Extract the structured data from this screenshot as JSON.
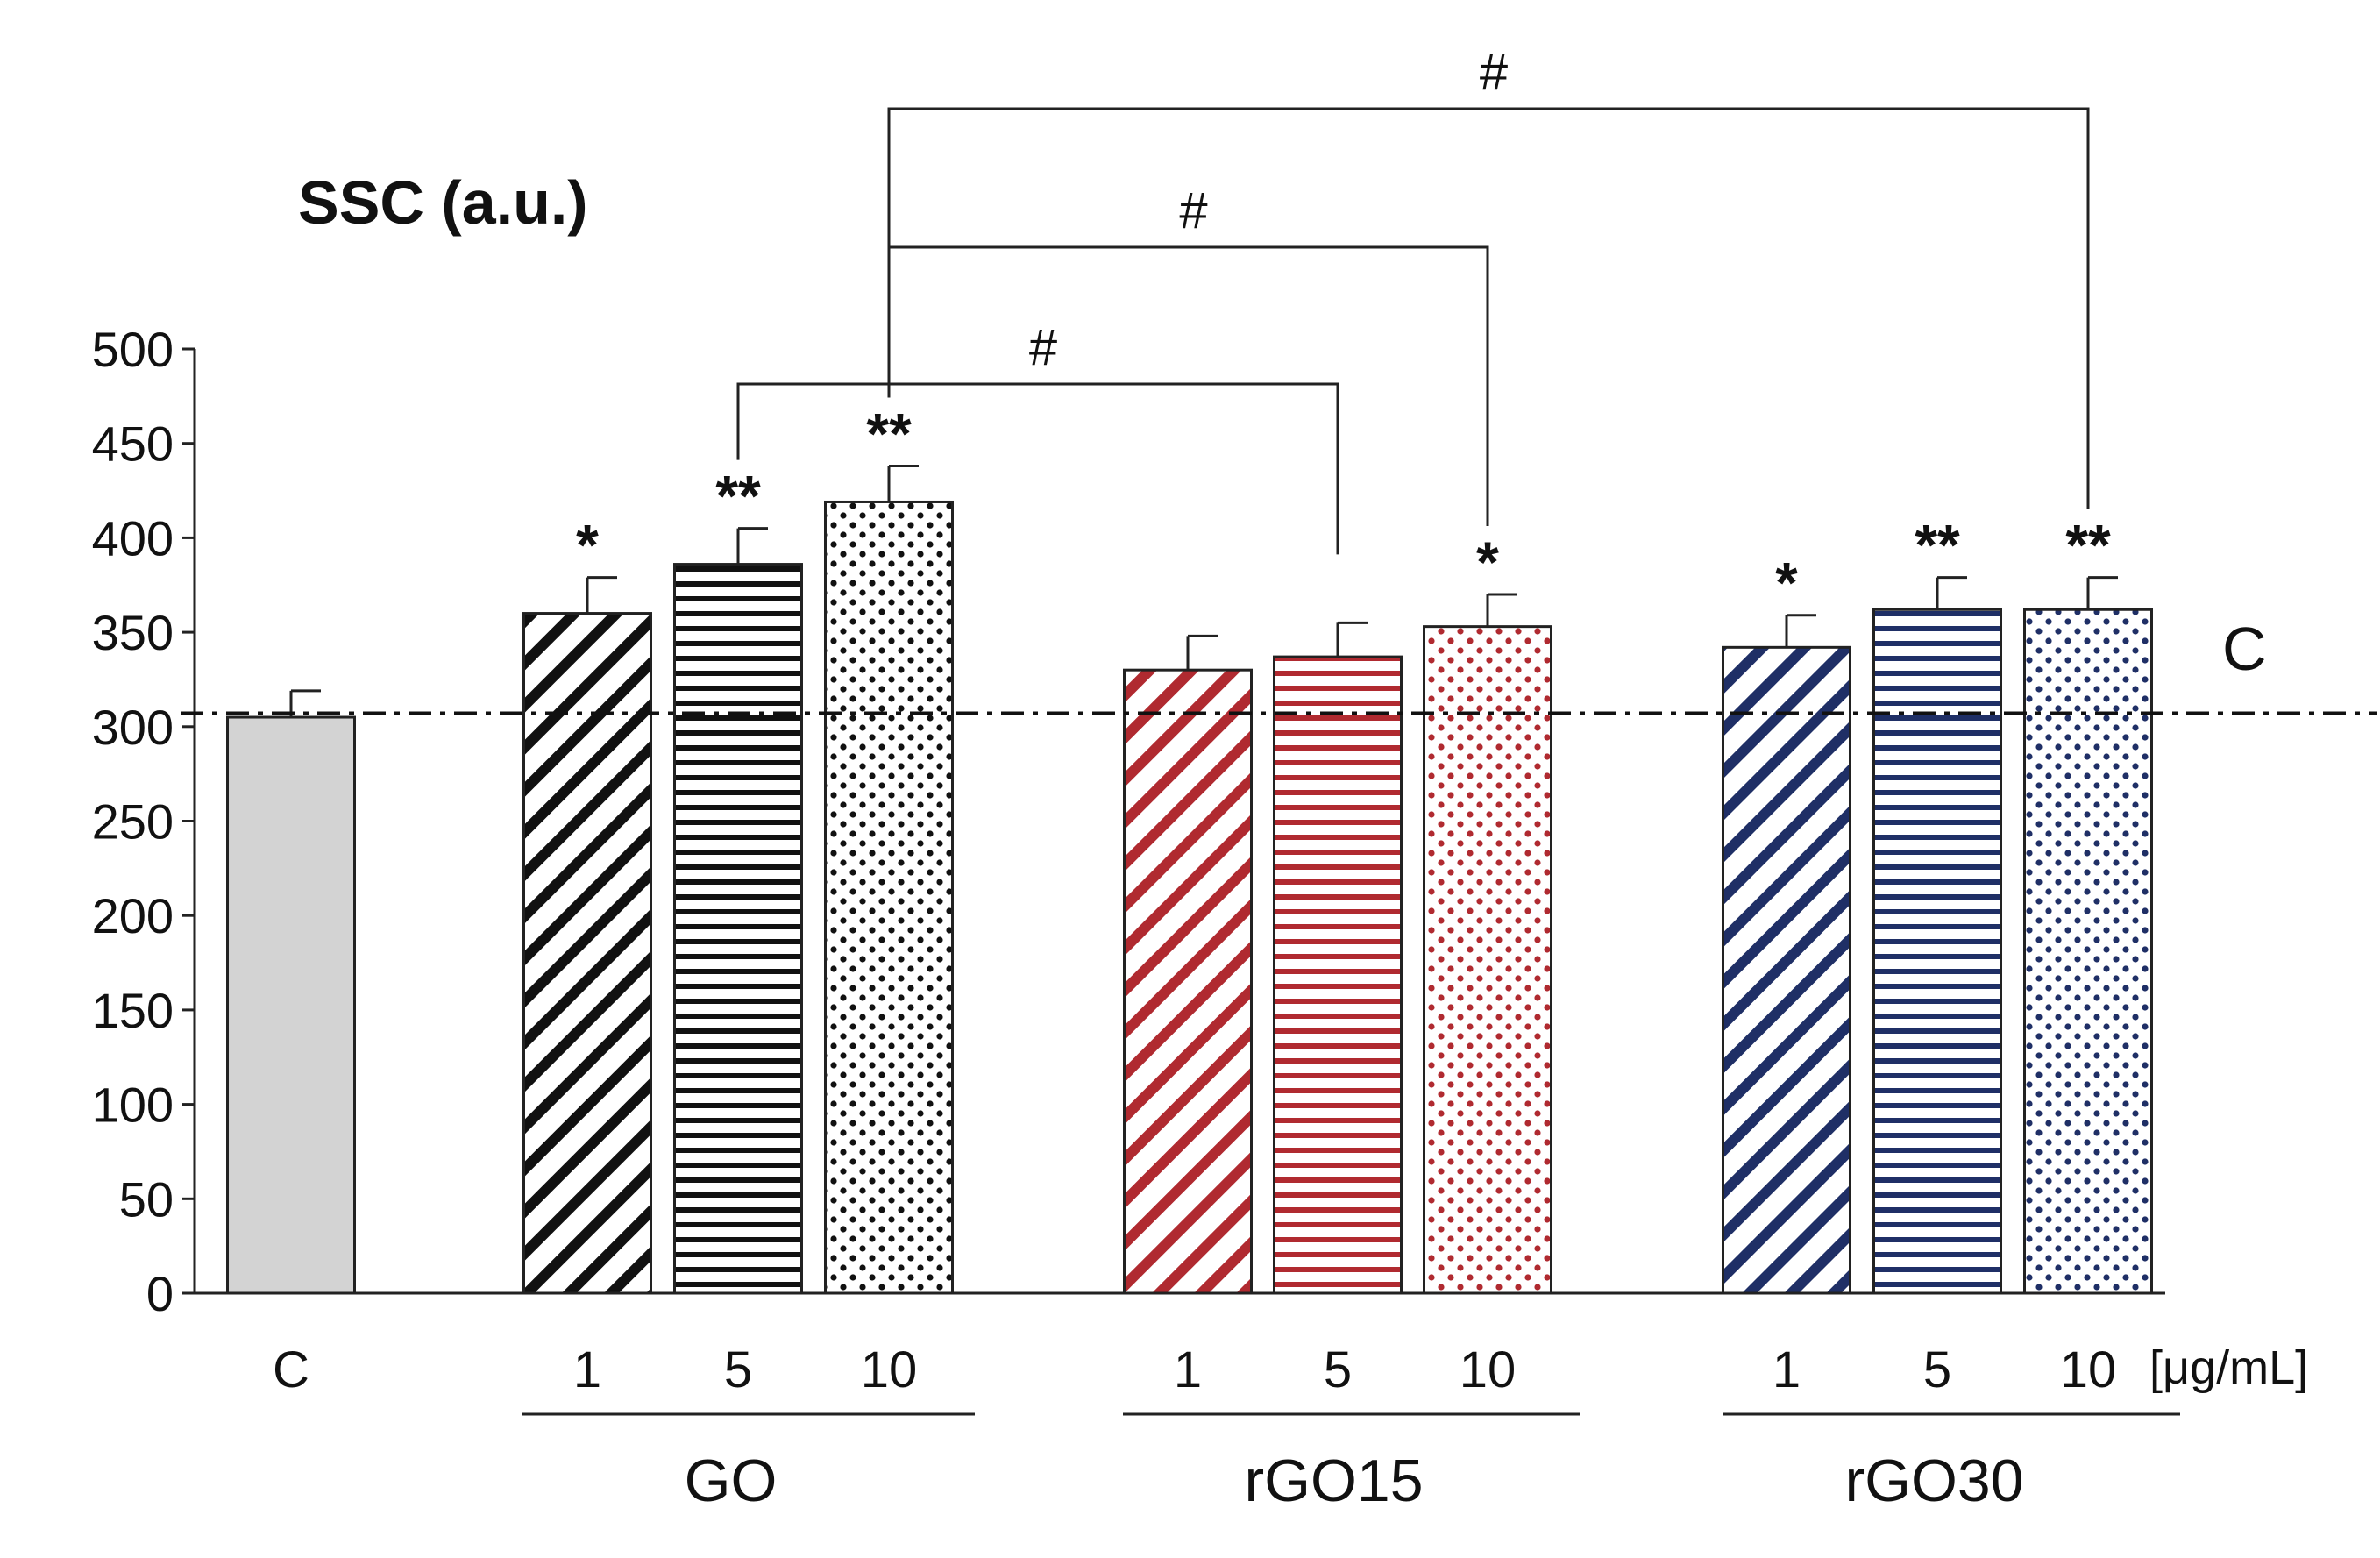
{
  "chart_data": {
    "type": "bar",
    "title": "SSC (a.u.)",
    "unit_label": "[μg/mL]",
    "ylim": [
      0,
      500
    ],
    "yticks": [
      0,
      50,
      100,
      150,
      200,
      250,
      300,
      350,
      400,
      450,
      500
    ],
    "grid": false,
    "reference_line": {
      "label": "C",
      "value": 307
    },
    "groups": [
      {
        "name": "",
        "categories": [
          "C"
        ]
      },
      {
        "name": "GO",
        "categories": [
          "1",
          "5",
          "10"
        ]
      },
      {
        "name": "rGO15",
        "categories": [
          "1",
          "5",
          "10"
        ]
      },
      {
        "name": "rGO30",
        "categories": [
          "1",
          "5",
          "10"
        ]
      }
    ],
    "bars": [
      {
        "group": "",
        "dose": "C",
        "value": 305,
        "error": 14,
        "sig": "",
        "color": "#d3d3d3",
        "pattern": "solid"
      },
      {
        "group": "GO",
        "dose": "1",
        "value": 360,
        "error": 19,
        "sig": "*",
        "color": "#111111",
        "pattern": "diagonal"
      },
      {
        "group": "GO",
        "dose": "5",
        "value": 386,
        "error": 19,
        "sig": "**",
        "color": "#111111",
        "pattern": "horizontal"
      },
      {
        "group": "GO",
        "dose": "10",
        "value": 419,
        "error": 19,
        "sig": "**",
        "color": "#111111",
        "pattern": "dots"
      },
      {
        "group": "rGO15",
        "dose": "1",
        "value": 330,
        "error": 18,
        "sig": "",
        "color": "#b02a30",
        "pattern": "diagonal"
      },
      {
        "group": "rGO15",
        "dose": "5",
        "value": 337,
        "error": 18,
        "sig": "",
        "color": "#b02a30",
        "pattern": "horizontal"
      },
      {
        "group": "rGO15",
        "dose": "10",
        "value": 353,
        "error": 17,
        "sig": "*",
        "color": "#b02a30",
        "pattern": "dots"
      },
      {
        "group": "rGO30",
        "dose": "1",
        "value": 342,
        "error": 17,
        "sig": "*",
        "color": "#1f2f66",
        "pattern": "diagonal"
      },
      {
        "group": "rGO30",
        "dose": "5",
        "value": 362,
        "error": 17,
        "sig": "**",
        "color": "#1f2f66",
        "pattern": "horizontal"
      },
      {
        "group": "rGO30",
        "dose": "10",
        "value": 362,
        "error": 17,
        "sig": "**",
        "color": "#1f2f66",
        "pattern": "dots"
      }
    ],
    "comparisons": [
      {
        "from": 2,
        "to": 5,
        "label": "#"
      },
      {
        "from": 3,
        "to": 6,
        "label": "#"
      },
      {
        "from": 3,
        "to": 9,
        "label": "#"
      }
    ]
  }
}
